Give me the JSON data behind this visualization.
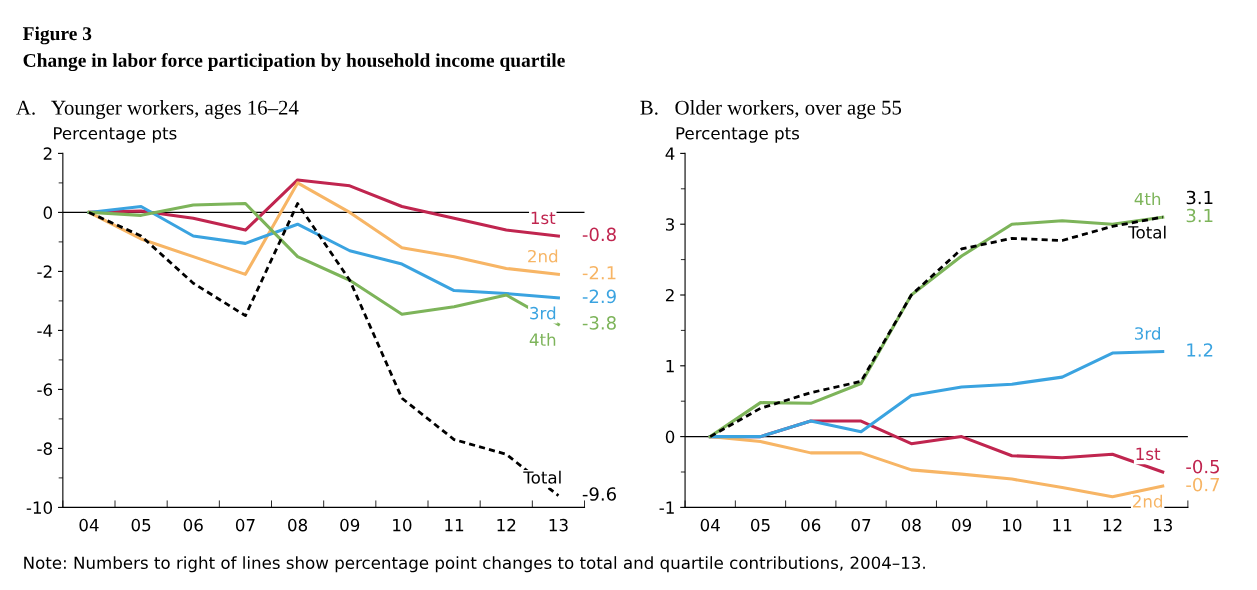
{
  "chart_data": [
    {
      "type": "line",
      "title": "A.   Younger workers, ages 16–24",
      "ylabel": "Percentage pts",
      "annotations": [
        "Figure 3",
        "Change in labor force participation by household income quartile",
        "Note: Numbers to right of lines show percentage point changes to total and quartile contributions, 2004–13."
      ],
      "categories": [
        "04",
        "05",
        "06",
        "07",
        "08",
        "09",
        "10",
        "11",
        "12",
        "13"
      ],
      "ylim": [
        -10,
        2
      ],
      "yticks": [
        -10,
        -8,
        -6,
        -4,
        -2,
        0,
        2
      ],
      "grid": false,
      "legend": false,
      "marker": "none",
      "ref_lines": [
        {
          "axis": "y",
          "value": 0,
          "color": "#000000"
        }
      ],
      "series": [
        {
          "name": "1st",
          "color": "#c0254f",
          "values": [
            0,
            0.05,
            -0.2,
            -0.6,
            1.1,
            0.9,
            0.2,
            -0.2,
            -0.6,
            -0.8
          ],
          "value_labels": [
            null,
            null,
            null,
            null,
            null,
            null,
            null,
            null,
            null,
            "-0.8"
          ]
        },
        {
          "name": "2nd",
          "color": "#f7b565",
          "values": [
            0,
            -0.9,
            -1.5,
            -2.1,
            1.0,
            0.0,
            -1.2,
            -1.5,
            -1.9,
            -2.1
          ],
          "value_labels": [
            null,
            null,
            null,
            null,
            null,
            null,
            null,
            null,
            null,
            "-2.1"
          ]
        },
        {
          "name": "3rd",
          "color": "#3aa3e0",
          "values": [
            0,
            0.2,
            -0.8,
            -1.05,
            -0.4,
            -1.3,
            -1.75,
            -2.65,
            -2.75,
            -2.9
          ],
          "value_labels": [
            null,
            null,
            null,
            null,
            null,
            null,
            null,
            null,
            null,
            "-2.9"
          ]
        },
        {
          "name": "4th",
          "color": "#7db45a",
          "values": [
            0,
            -0.1,
            0.25,
            0.3,
            -1.5,
            -2.3,
            -3.45,
            -3.2,
            -2.8,
            -3.8
          ],
          "value_labels": [
            null,
            null,
            null,
            null,
            null,
            null,
            null,
            null,
            null,
            "-3.8"
          ]
        },
        {
          "name": "Total",
          "color": "#000000",
          "line_style": "dashed",
          "values": [
            0,
            -0.8,
            -2.4,
            -3.5,
            0.3,
            -2.3,
            -6.3,
            -7.7,
            -8.2,
            -9.6
          ],
          "value_labels": [
            null,
            null,
            null,
            null,
            null,
            null,
            null,
            null,
            null,
            "-9.6"
          ]
        }
      ]
    },
    {
      "type": "line",
      "title": "B.   Older workers, over age 55",
      "ylabel": "Percentage pts",
      "categories": [
        "04",
        "05",
        "06",
        "07",
        "08",
        "09",
        "10",
        "11",
        "12",
        "13"
      ],
      "ylim": [
        -1,
        4
      ],
      "yticks": [
        -1,
        0,
        1,
        2,
        3,
        4
      ],
      "grid": false,
      "legend": false,
      "marker": "none",
      "ref_lines": [
        {
          "axis": "y",
          "value": 0,
          "color": "#000000"
        }
      ],
      "series": [
        {
          "name": "1st",
          "color": "#c0254f",
          "values": [
            0,
            0.0,
            0.22,
            0.22,
            -0.1,
            0.0,
            -0.27,
            -0.3,
            -0.25,
            -0.5
          ],
          "value_labels": [
            null,
            null,
            null,
            null,
            null,
            null,
            null,
            null,
            null,
            "-0.5"
          ]
        },
        {
          "name": "2nd",
          "color": "#f7b565",
          "values": [
            0,
            -0.07,
            -0.23,
            -0.23,
            -0.47,
            -0.53,
            -0.6,
            -0.72,
            -0.85,
            -0.7
          ],
          "value_labels": [
            null,
            null,
            null,
            null,
            null,
            null,
            null,
            null,
            null,
            "-0.7"
          ]
        },
        {
          "name": "3rd",
          "color": "#3aa3e0",
          "values": [
            0,
            0.0,
            0.22,
            0.07,
            0.58,
            0.7,
            0.74,
            0.84,
            1.18,
            1.2
          ],
          "value_labels": [
            null,
            null,
            null,
            null,
            null,
            null,
            null,
            null,
            null,
            "1.2"
          ]
        },
        {
          "name": "4th",
          "color": "#7db45a",
          "values": [
            0,
            0.48,
            0.47,
            0.75,
            2.0,
            2.55,
            3.0,
            3.05,
            3.0,
            3.1
          ],
          "value_labels": [
            null,
            null,
            null,
            null,
            null,
            null,
            null,
            null,
            null,
            "3.1"
          ]
        },
        {
          "name": "Total",
          "color": "#000000",
          "line_style": "dashed",
          "values": [
            0,
            0.4,
            0.62,
            0.78,
            2.0,
            2.65,
            2.8,
            2.77,
            2.97,
            3.1
          ],
          "value_labels": [
            null,
            null,
            null,
            null,
            null,
            null,
            null,
            null,
            null,
            "3.1"
          ]
        }
      ]
    }
  ]
}
